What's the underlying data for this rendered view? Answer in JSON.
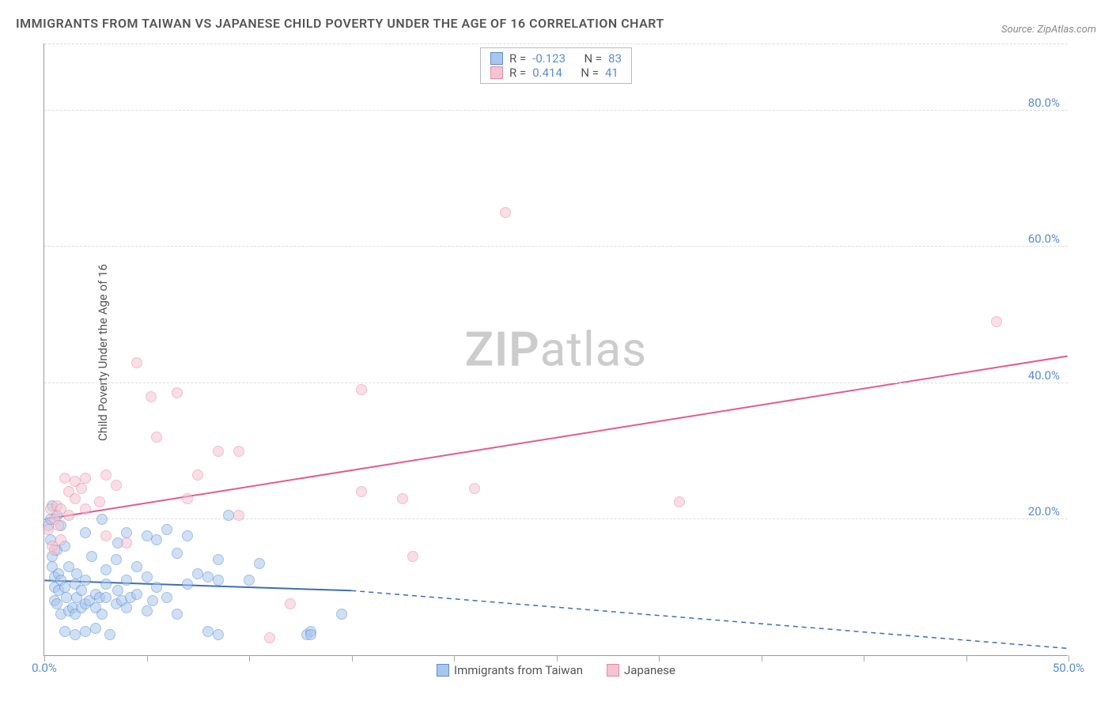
{
  "title": "IMMIGRANTS FROM TAIWAN VS JAPANESE CHILD POVERTY UNDER THE AGE OF 16 CORRELATION CHART",
  "source_prefix": "Source: ",
  "source_link": "ZipAtlas.com",
  "y_label": "Child Poverty Under the Age of 16",
  "watermark_bold": "ZIP",
  "watermark_rest": "atlas",
  "chart": {
    "type": "scatter",
    "xlim": [
      0,
      50
    ],
    "ylim": [
      0,
      90
    ],
    "x_ticks": [
      0,
      50
    ],
    "x_tick_labels": [
      "0.0%",
      "50.0%"
    ],
    "x_minor_ticks": [
      5,
      10,
      15,
      20,
      25,
      30,
      35,
      40,
      45
    ],
    "y_ticks": [
      20,
      40,
      60,
      80
    ],
    "y_tick_labels": [
      "20.0%",
      "40.0%",
      "60.0%",
      "80.0%"
    ],
    "grid_color": "#dddddd",
    "axis_color": "#999999",
    "tick_label_color": "#5b8dd6",
    "background_color": "#ffffff",
    "marker_radius": 7,
    "marker_opacity": 0.55,
    "series": [
      {
        "name": "Immigrants from Taiwan",
        "color_fill": "#a9c7ec",
        "color_stroke": "#5b8dd6",
        "R": "-0.123",
        "N": "83",
        "trend": {
          "x1": 0,
          "y1": 11,
          "x2": 15,
          "y2": 9.5,
          "x2_ext": 50,
          "y2_ext": 1,
          "color": "#3d6db8",
          "width": 2,
          "dashed_ext": true
        },
        "points": [
          [
            0.2,
            19
          ],
          [
            0.3,
            17
          ],
          [
            0.3,
            20
          ],
          [
            0.4,
            14.5
          ],
          [
            0.4,
            13
          ],
          [
            0.4,
            22
          ],
          [
            0.5,
            10
          ],
          [
            0.5,
            11.5
          ],
          [
            0.5,
            8
          ],
          [
            0.6,
            15.5
          ],
          [
            0.6,
            20.5
          ],
          [
            0.6,
            7.5
          ],
          [
            0.7,
            9.5
          ],
          [
            0.7,
            12
          ],
          [
            0.8,
            19
          ],
          [
            0.8,
            11
          ],
          [
            0.8,
            6
          ],
          [
            1,
            10
          ],
          [
            1,
            3.5
          ],
          [
            1,
            16
          ],
          [
            1.1,
            8.5
          ],
          [
            1.2,
            13
          ],
          [
            1.2,
            6.5
          ],
          [
            1.4,
            7
          ],
          [
            1.5,
            10.5
          ],
          [
            1.5,
            6
          ],
          [
            1.5,
            3
          ],
          [
            1.6,
            8.5
          ],
          [
            1.6,
            12
          ],
          [
            1.8,
            7
          ],
          [
            1.8,
            9.5
          ],
          [
            2,
            7.5
          ],
          [
            2,
            18
          ],
          [
            2,
            11
          ],
          [
            2,
            3.5
          ],
          [
            2.2,
            8
          ],
          [
            2.3,
            14.5
          ],
          [
            2.5,
            9
          ],
          [
            2.5,
            7
          ],
          [
            2.5,
            4
          ],
          [
            2.7,
            8.5
          ],
          [
            2.8,
            20
          ],
          [
            2.8,
            6
          ],
          [
            3,
            10.5
          ],
          [
            3,
            8.5
          ],
          [
            3,
            12.5
          ],
          [
            3.2,
            3
          ],
          [
            3.5,
            14
          ],
          [
            3.5,
            7.5
          ],
          [
            3.6,
            16.5
          ],
          [
            3.6,
            9.5
          ],
          [
            3.8,
            8
          ],
          [
            4,
            11
          ],
          [
            4,
            7
          ],
          [
            4,
            18
          ],
          [
            4.2,
            8.5
          ],
          [
            4.5,
            13
          ],
          [
            4.5,
            9
          ],
          [
            5,
            11.5
          ],
          [
            5,
            6.5
          ],
          [
            5,
            17.5
          ],
          [
            5.3,
            8
          ],
          [
            5.5,
            10
          ],
          [
            5.5,
            17
          ],
          [
            6,
            18.5
          ],
          [
            6,
            8.5
          ],
          [
            6.5,
            6
          ],
          [
            6.5,
            15
          ],
          [
            7,
            17.5
          ],
          [
            7,
            10.5
          ],
          [
            7.5,
            12
          ],
          [
            8,
            3.5
          ],
          [
            8,
            11.5
          ],
          [
            8.5,
            14
          ],
          [
            8.5,
            11
          ],
          [
            8.5,
            3
          ],
          [
            9,
            20.5
          ],
          [
            10,
            11
          ],
          [
            10.5,
            13.5
          ],
          [
            12.8,
            3
          ],
          [
            13,
            3.5
          ],
          [
            13,
            3
          ],
          [
            14.5,
            6
          ]
        ]
      },
      {
        "name": "Japanese",
        "color_fill": "#f5c4d0",
        "color_stroke": "#e68aa5",
        "R": "0.414",
        "N": "41",
        "trend": {
          "x1": 0,
          "y1": 20,
          "x2": 50,
          "y2": 44,
          "color": "#e75a8b",
          "width": 2,
          "dashed_ext": false
        },
        "points": [
          [
            0.2,
            18.5
          ],
          [
            0.3,
            21.5
          ],
          [
            0.4,
            16
          ],
          [
            0.5,
            20
          ],
          [
            0.5,
            15.5
          ],
          [
            0.6,
            22
          ],
          [
            0.7,
            19
          ],
          [
            0.8,
            21.5
          ],
          [
            0.8,
            17
          ],
          [
            1,
            26
          ],
          [
            1.2,
            24
          ],
          [
            1.2,
            20.5
          ],
          [
            1.5,
            23
          ],
          [
            1.5,
            25.5
          ],
          [
            1.8,
            24.5
          ],
          [
            2,
            21.5
          ],
          [
            2,
            26
          ],
          [
            2.7,
            22.5
          ],
          [
            3,
            26.5
          ],
          [
            3,
            17.5
          ],
          [
            3.5,
            25
          ],
          [
            4,
            16.5
          ],
          [
            4.5,
            43
          ],
          [
            5.2,
            38
          ],
          [
            5.5,
            32
          ],
          [
            6.5,
            38.5
          ],
          [
            7,
            23
          ],
          [
            7.5,
            26.5
          ],
          [
            8.5,
            30
          ],
          [
            9.5,
            20.5
          ],
          [
            9.5,
            30
          ],
          [
            11,
            2.5
          ],
          [
            12,
            7.5
          ],
          [
            15.5,
            24
          ],
          [
            15.5,
            39
          ],
          [
            17.5,
            23
          ],
          [
            18,
            14.5
          ],
          [
            21,
            24.5
          ],
          [
            22.5,
            65
          ],
          [
            31,
            22.5
          ],
          [
            46.5,
            49
          ]
        ]
      }
    ]
  },
  "legend_bottom": [
    {
      "label": "Immigrants from Taiwan",
      "fill": "#a9c7ec",
      "stroke": "#5b8dd6"
    },
    {
      "label": "Japanese",
      "fill": "#f5c4d0",
      "stroke": "#e68aa5"
    }
  ],
  "stats_labels": {
    "R": "R =",
    "N": "N ="
  }
}
